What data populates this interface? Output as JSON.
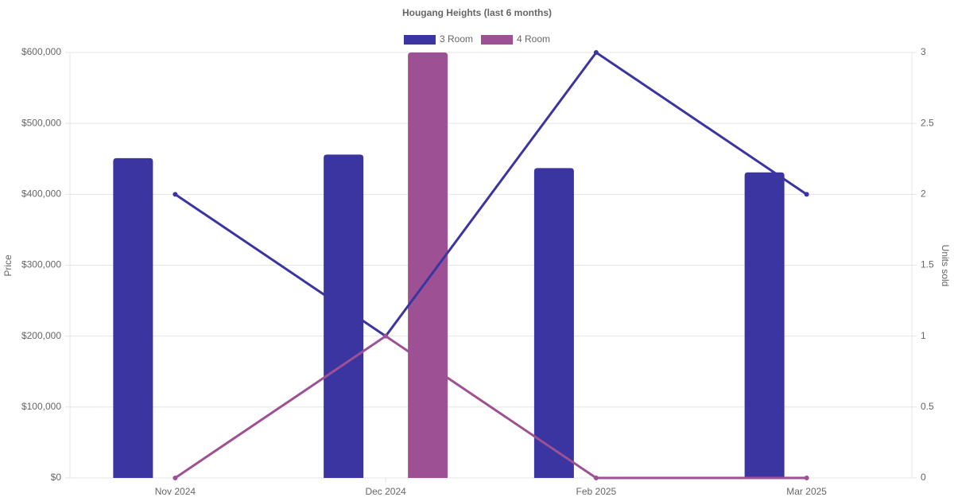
{
  "chart_data": {
    "type": "bar-line",
    "title": "Hougang Heights (last 6 months)",
    "categories": [
      "Nov 2024",
      "Dec 2024",
      "Feb 2025",
      "Mar 2025"
    ],
    "series": [
      {
        "name": "3 Room",
        "color": "#3a35a0",
        "values": [
          451000,
          456000,
          437000,
          431000
        ],
        "units_sold": [
          2,
          1,
          3,
          2
        ]
      },
      {
        "name": "4 Room",
        "color": "#9d5093",
        "values": [
          null,
          600000,
          null,
          null
        ],
        "units_sold": [
          0,
          1,
          0,
          0
        ]
      }
    ],
    "y_label": "Price",
    "y2_label": "Units sold",
    "ylim": [
      0,
      600000
    ],
    "yticks": [
      {
        "value": 0,
        "label": "$0"
      },
      {
        "value": 100000,
        "label": "$100,000"
      },
      {
        "value": 200000,
        "label": "$200,000"
      },
      {
        "value": 300000,
        "label": "$300,000"
      },
      {
        "value": 400000,
        "label": "$400,000"
      },
      {
        "value": 500000,
        "label": "$500,000"
      },
      {
        "value": 600000,
        "label": "$600,000"
      }
    ],
    "y2lim": [
      0,
      3
    ],
    "y2ticks": [
      0,
      0.5,
      1,
      1.5,
      2,
      2.5,
      3
    ],
    "grid": true,
    "legend": "top"
  }
}
